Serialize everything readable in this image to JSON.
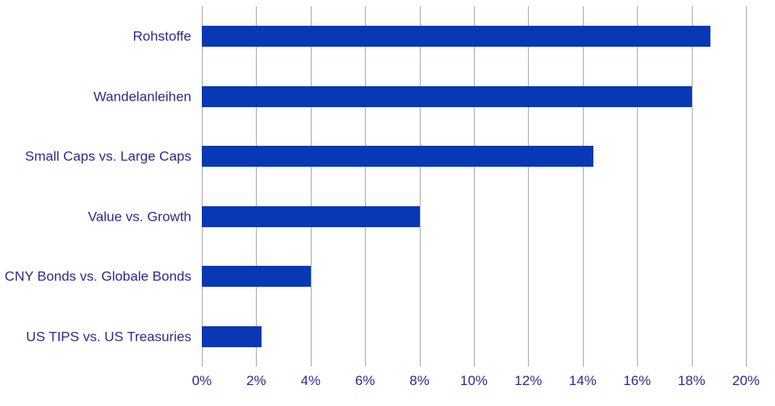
{
  "chart_data": {
    "type": "bar",
    "orientation": "horizontal",
    "title": "",
    "xlabel": "",
    "ylabel": "",
    "categories": [
      "Rohstoffe",
      "Wandelanleihen",
      "Small Caps vs. Large Caps",
      "Value vs. Growth",
      "CNY Bonds vs. Globale Bonds",
      "US TIPS vs. US Treasuries"
    ],
    "values": [
      18.7,
      18.0,
      14.4,
      8.0,
      4.0,
      2.2
    ],
    "value_unit": "%",
    "xlim": [
      0,
      20
    ],
    "x_tick_step": 2,
    "x_tick_labels": [
      "0%",
      "2%",
      "4%",
      "6%",
      "8%",
      "10%",
      "12%",
      "14%",
      "16%",
      "18%",
      "20%"
    ],
    "grid": true,
    "legend": false,
    "colors": {
      "bar": "#0838b3",
      "gridline": "#a9a9a9",
      "label_text": "#2b2b8c"
    }
  }
}
